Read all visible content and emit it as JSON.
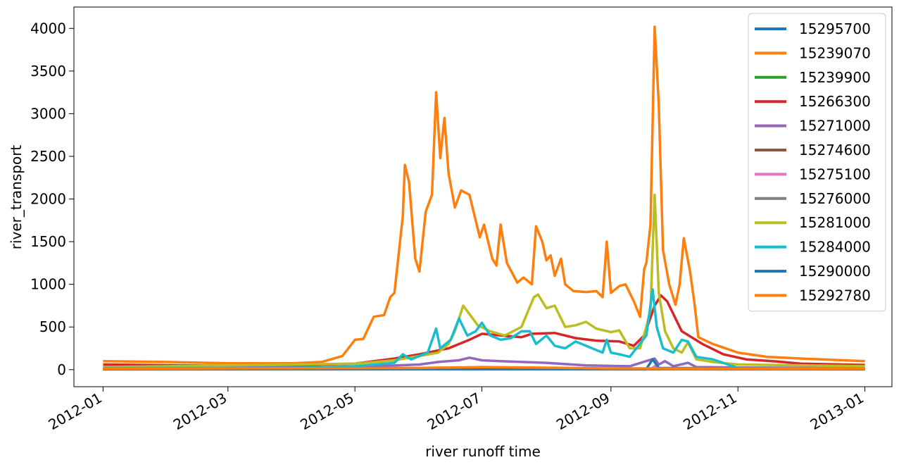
{
  "chart_data": {
    "type": "line",
    "xlabel": "river runoff time",
    "ylabel": "river_transport",
    "x_ticks": [
      "2012-01",
      "2012-03",
      "2012-05",
      "2012-07",
      "2012-09",
      "2012-11",
      "2013-01"
    ],
    "y_ticks": [
      "0",
      "500",
      "1000",
      "1500",
      "2000",
      "2500",
      "3000",
      "3500",
      "4000"
    ],
    "xlim": [
      "2011-12-18",
      "2013-01-14"
    ],
    "ylim": [
      -200,
      4250
    ],
    "grid": false,
    "legend_position": "top-right",
    "series": [
      {
        "name": "15295700",
        "color": "#1f77b4",
        "points": [
          [
            "2012-01-01",
            3
          ],
          [
            "2012-09-20",
            3
          ],
          [
            "2012-09-22",
            15
          ],
          [
            "2012-09-25",
            4
          ],
          [
            "2013-01-01",
            3
          ]
        ]
      },
      {
        "name": "15239070",
        "color": "#ff7f0e",
        "points": [
          [
            "2012-01-01",
            100
          ],
          [
            "2012-02-01",
            90
          ],
          [
            "2012-03-01",
            75
          ],
          [
            "2012-04-01",
            75
          ],
          [
            "2012-04-15",
            90
          ],
          [
            "2012-04-25",
            160
          ],
          [
            "2012-05-01",
            350
          ],
          [
            "2012-05-05",
            360
          ],
          [
            "2012-05-10",
            620
          ],
          [
            "2012-05-15",
            640
          ],
          [
            "2012-05-18",
            850
          ],
          [
            "2012-05-20",
            900
          ],
          [
            "2012-05-24",
            1800
          ],
          [
            "2012-05-25",
            2400
          ],
          [
            "2012-05-27",
            2200
          ],
          [
            "2012-05-30",
            1300
          ],
          [
            "2012-06-01",
            1150
          ],
          [
            "2012-06-04",
            1850
          ],
          [
            "2012-06-07",
            2050
          ],
          [
            "2012-06-09",
            3250
          ],
          [
            "2012-06-11",
            2480
          ],
          [
            "2012-06-13",
            2950
          ],
          [
            "2012-06-15",
            2300
          ],
          [
            "2012-06-18",
            1900
          ],
          [
            "2012-06-21",
            2100
          ],
          [
            "2012-06-25",
            2050
          ],
          [
            "2012-06-30",
            1550
          ],
          [
            "2012-07-02",
            1700
          ],
          [
            "2012-07-06",
            1300
          ],
          [
            "2012-07-08",
            1220
          ],
          [
            "2012-07-10",
            1700
          ],
          [
            "2012-07-13",
            1250
          ],
          [
            "2012-07-18",
            1020
          ],
          [
            "2012-07-21",
            1080
          ],
          [
            "2012-07-25",
            1000
          ],
          [
            "2012-07-27",
            1680
          ],
          [
            "2012-07-30",
            1500
          ],
          [
            "2012-08-01",
            1280
          ],
          [
            "2012-08-03",
            1340
          ],
          [
            "2012-08-05",
            1100
          ],
          [
            "2012-08-08",
            1300
          ],
          [
            "2012-08-10",
            1000
          ],
          [
            "2012-08-14",
            920
          ],
          [
            "2012-08-20",
            910
          ],
          [
            "2012-08-25",
            920
          ],
          [
            "2012-08-28",
            850
          ],
          [
            "2012-08-30",
            1500
          ],
          [
            "2012-09-01",
            900
          ],
          [
            "2012-09-05",
            980
          ],
          [
            "2012-09-08",
            1000
          ],
          [
            "2012-09-12",
            800
          ],
          [
            "2012-09-15",
            620
          ],
          [
            "2012-09-17",
            1180
          ],
          [
            "2012-09-18",
            1250
          ],
          [
            "2012-09-20",
            1700
          ],
          [
            "2012-09-22",
            4020
          ],
          [
            "2012-09-24",
            3100
          ],
          [
            "2012-09-26",
            1400
          ],
          [
            "2012-09-29",
            1000
          ],
          [
            "2012-10-02",
            760
          ],
          [
            "2012-10-04",
            1000
          ],
          [
            "2012-10-06",
            1540
          ],
          [
            "2012-10-09",
            1150
          ],
          [
            "2012-10-11",
            800
          ],
          [
            "2012-10-13",
            380
          ],
          [
            "2012-10-20",
            300
          ],
          [
            "2012-11-01",
            200
          ],
          [
            "2012-11-15",
            150
          ],
          [
            "2012-12-01",
            130
          ],
          [
            "2013-01-01",
            100
          ]
        ]
      },
      {
        "name": "15239900",
        "color": "#2ca02c",
        "points": [
          [
            "2012-01-01",
            8
          ],
          [
            "2013-01-01",
            8
          ]
        ]
      },
      {
        "name": "15266300",
        "color": "#d62728",
        "points": [
          [
            "2012-01-01",
            60
          ],
          [
            "2012-03-01",
            45
          ],
          [
            "2012-04-01",
            50
          ],
          [
            "2012-05-01",
            70
          ],
          [
            "2012-05-20",
            130
          ],
          [
            "2012-06-01",
            180
          ],
          [
            "2012-06-15",
            250
          ],
          [
            "2012-06-25",
            350
          ],
          [
            "2012-07-01",
            420
          ],
          [
            "2012-07-10",
            400
          ],
          [
            "2012-07-20",
            380
          ],
          [
            "2012-07-25",
            420
          ],
          [
            "2012-08-05",
            430
          ],
          [
            "2012-08-15",
            370
          ],
          [
            "2012-08-25",
            340
          ],
          [
            "2012-09-05",
            330
          ],
          [
            "2012-09-12",
            280
          ],
          [
            "2012-09-17",
            400
          ],
          [
            "2012-09-22",
            750
          ],
          [
            "2012-09-25",
            870
          ],
          [
            "2012-09-28",
            800
          ],
          [
            "2012-10-05",
            450
          ],
          [
            "2012-10-15",
            300
          ],
          [
            "2012-10-25",
            180
          ],
          [
            "2012-11-05",
            120
          ],
          [
            "2012-11-20",
            95
          ],
          [
            "2012-12-01",
            70
          ],
          [
            "2013-01-01",
            55
          ]
        ]
      },
      {
        "name": "15271000",
        "color": "#9467bd",
        "points": [
          [
            "2012-01-01",
            30
          ],
          [
            "2012-05-01",
            30
          ],
          [
            "2012-06-01",
            60
          ],
          [
            "2012-06-10",
            90
          ],
          [
            "2012-06-20",
            110
          ],
          [
            "2012-06-25",
            140
          ],
          [
            "2012-07-01",
            110
          ],
          [
            "2012-07-10",
            100
          ],
          [
            "2012-08-01",
            80
          ],
          [
            "2012-08-20",
            50
          ],
          [
            "2012-09-10",
            40
          ],
          [
            "2012-09-22",
            130
          ],
          [
            "2012-09-24",
            60
          ],
          [
            "2012-09-27",
            100
          ],
          [
            "2012-10-01",
            40
          ],
          [
            "2012-10-08",
            80
          ],
          [
            "2012-10-12",
            30
          ],
          [
            "2012-11-01",
            25
          ],
          [
            "2013-01-01",
            20
          ]
        ]
      },
      {
        "name": "15274600",
        "color": "#8c564b",
        "points": [
          [
            "2012-01-01",
            5
          ],
          [
            "2013-01-01",
            5
          ]
        ]
      },
      {
        "name": "15275100",
        "color": "#e377c2",
        "points": [
          [
            "2012-01-01",
            4
          ],
          [
            "2012-09-20",
            4
          ],
          [
            "2012-09-22",
            40
          ],
          [
            "2012-09-25",
            5
          ],
          [
            "2013-01-01",
            4
          ]
        ]
      },
      {
        "name": "15276000",
        "color": "#7f7f7f",
        "points": [
          [
            "2012-01-01",
            6
          ],
          [
            "2013-01-01",
            6
          ]
        ]
      },
      {
        "name": "15281000",
        "color": "#bcbd22",
        "points": [
          [
            "2012-01-01",
            30
          ],
          [
            "2012-05-01",
            70
          ],
          [
            "2012-05-20",
            110
          ],
          [
            "2012-06-01",
            160
          ],
          [
            "2012-06-10",
            200
          ],
          [
            "2012-06-15",
            300
          ],
          [
            "2012-06-18",
            450
          ],
          [
            "2012-06-22",
            750
          ],
          [
            "2012-06-26",
            620
          ],
          [
            "2012-06-29",
            520
          ],
          [
            "2012-07-05",
            450
          ],
          [
            "2012-07-12",
            400
          ],
          [
            "2012-07-20",
            500
          ],
          [
            "2012-07-26",
            850
          ],
          [
            "2012-07-28",
            880
          ],
          [
            "2012-08-01",
            720
          ],
          [
            "2012-08-05",
            750
          ],
          [
            "2012-08-10",
            500
          ],
          [
            "2012-08-15",
            520
          ],
          [
            "2012-08-20",
            560
          ],
          [
            "2012-08-25",
            480
          ],
          [
            "2012-09-01",
            440
          ],
          [
            "2012-09-05",
            460
          ],
          [
            "2012-09-10",
            250
          ],
          [
            "2012-09-15",
            250
          ],
          [
            "2012-09-18",
            500
          ],
          [
            "2012-09-20",
            700
          ],
          [
            "2012-09-22",
            2050
          ],
          [
            "2012-09-24",
            900
          ],
          [
            "2012-09-27",
            450
          ],
          [
            "2012-10-01",
            250
          ],
          [
            "2012-10-05",
            200
          ],
          [
            "2012-10-08",
            320
          ],
          [
            "2012-10-12",
            120
          ],
          [
            "2012-10-20",
            90
          ],
          [
            "2012-11-01",
            60
          ],
          [
            "2013-01-01",
            40
          ]
        ]
      },
      {
        "name": "15284000",
        "color": "#17becf",
        "points": [
          [
            "2012-01-01",
            20
          ],
          [
            "2012-04-01",
            20
          ],
          [
            "2012-05-01",
            40
          ],
          [
            "2012-05-20",
            80
          ],
          [
            "2012-05-24",
            180
          ],
          [
            "2012-05-28",
            120
          ],
          [
            "2012-06-05",
            200
          ],
          [
            "2012-06-09",
            480
          ],
          [
            "2012-06-11",
            250
          ],
          [
            "2012-06-16",
            350
          ],
          [
            "2012-06-20",
            600
          ],
          [
            "2012-06-24",
            400
          ],
          [
            "2012-06-28",
            450
          ],
          [
            "2012-07-01",
            550
          ],
          [
            "2012-07-05",
            400
          ],
          [
            "2012-07-10",
            350
          ],
          [
            "2012-07-15",
            370
          ],
          [
            "2012-07-20",
            450
          ],
          [
            "2012-07-24",
            450
          ],
          [
            "2012-07-27",
            300
          ],
          [
            "2012-08-01",
            400
          ],
          [
            "2012-08-05",
            280
          ],
          [
            "2012-08-10",
            250
          ],
          [
            "2012-08-15",
            330
          ],
          [
            "2012-08-20",
            280
          ],
          [
            "2012-08-28",
            200
          ],
          [
            "2012-08-30",
            350
          ],
          [
            "2012-09-01",
            200
          ],
          [
            "2012-09-05",
            180
          ],
          [
            "2012-09-10",
            150
          ],
          [
            "2012-09-18",
            400
          ],
          [
            "2012-09-21",
            940
          ],
          [
            "2012-09-23",
            500
          ],
          [
            "2012-09-26",
            250
          ],
          [
            "2012-10-01",
            200
          ],
          [
            "2012-10-05",
            350
          ],
          [
            "2012-10-08",
            330
          ],
          [
            "2012-10-12",
            150
          ],
          [
            "2012-10-20",
            120
          ],
          [
            "2012-11-01",
            20
          ],
          [
            "2013-01-01",
            15
          ]
        ]
      },
      {
        "name": "15290000",
        "color": "#1f77b4",
        "points": [
          [
            "2012-01-01",
            8
          ],
          [
            "2012-09-18",
            8
          ],
          [
            "2012-09-21",
            120
          ],
          [
            "2012-09-24",
            20
          ],
          [
            "2013-01-01",
            8
          ]
        ]
      },
      {
        "name": "15292780",
        "color": "#ff7f0e",
        "points": [
          [
            "2012-01-01",
            12
          ],
          [
            "2012-06-01",
            20
          ],
          [
            "2012-07-01",
            30
          ],
          [
            "2012-09-01",
            15
          ],
          [
            "2013-01-01",
            12
          ]
        ]
      }
    ]
  }
}
